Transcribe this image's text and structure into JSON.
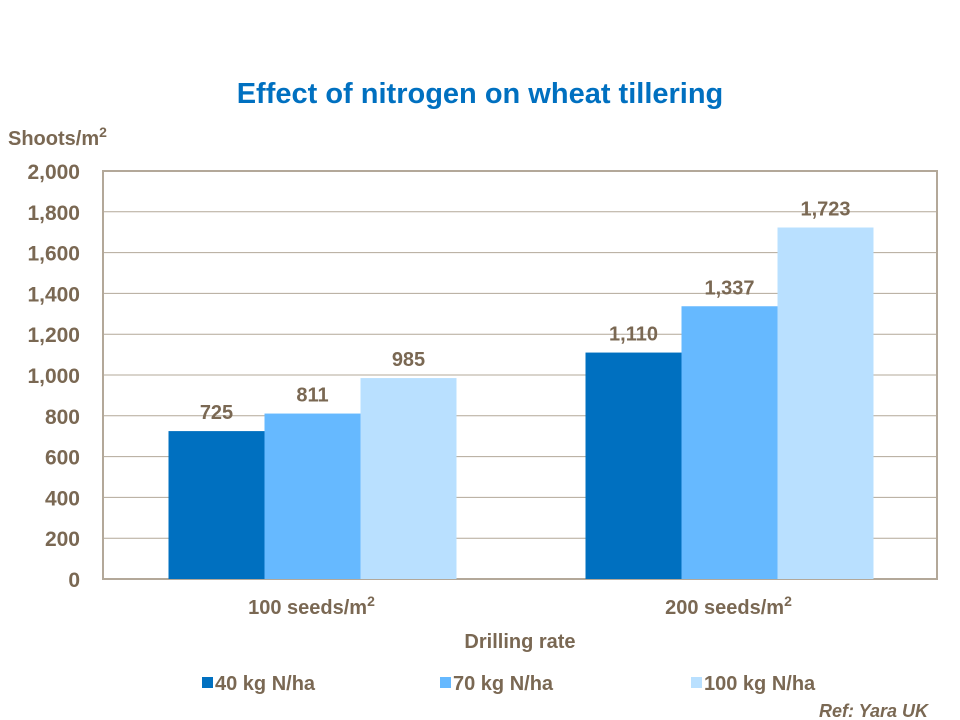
{
  "chart_data": {
    "type": "bar",
    "title": "Effect of nitrogen on wheat tillering",
    "ylabel": "Shoots/m²",
    "xlabel": "Drilling rate",
    "categories": [
      "100 seeds/m²",
      "200 seeds/m²"
    ],
    "series": [
      {
        "name": "40 kg N/ha",
        "values": [
          725,
          1110
        ],
        "color": "#0070C0"
      },
      {
        "name": "70 kg N/ha",
        "values": [
          811,
          1337
        ],
        "color": "#66B9FF"
      },
      {
        "name": "100 kg N/ha",
        "values": [
          985,
          1723
        ],
        "color": "#B9E0FF"
      }
    ],
    "ylim": [
      0,
      2000
    ],
    "yticks": [
      0,
      200,
      400,
      600,
      800,
      1000,
      1200,
      1400,
      1600,
      1800,
      2000
    ],
    "grid": true,
    "legend": "bottom",
    "annotation": "Ref: Yara UK",
    "colors": {
      "title": "#0070C0",
      "text": "#7A6853",
      "axis": "#B3A899"
    }
  }
}
